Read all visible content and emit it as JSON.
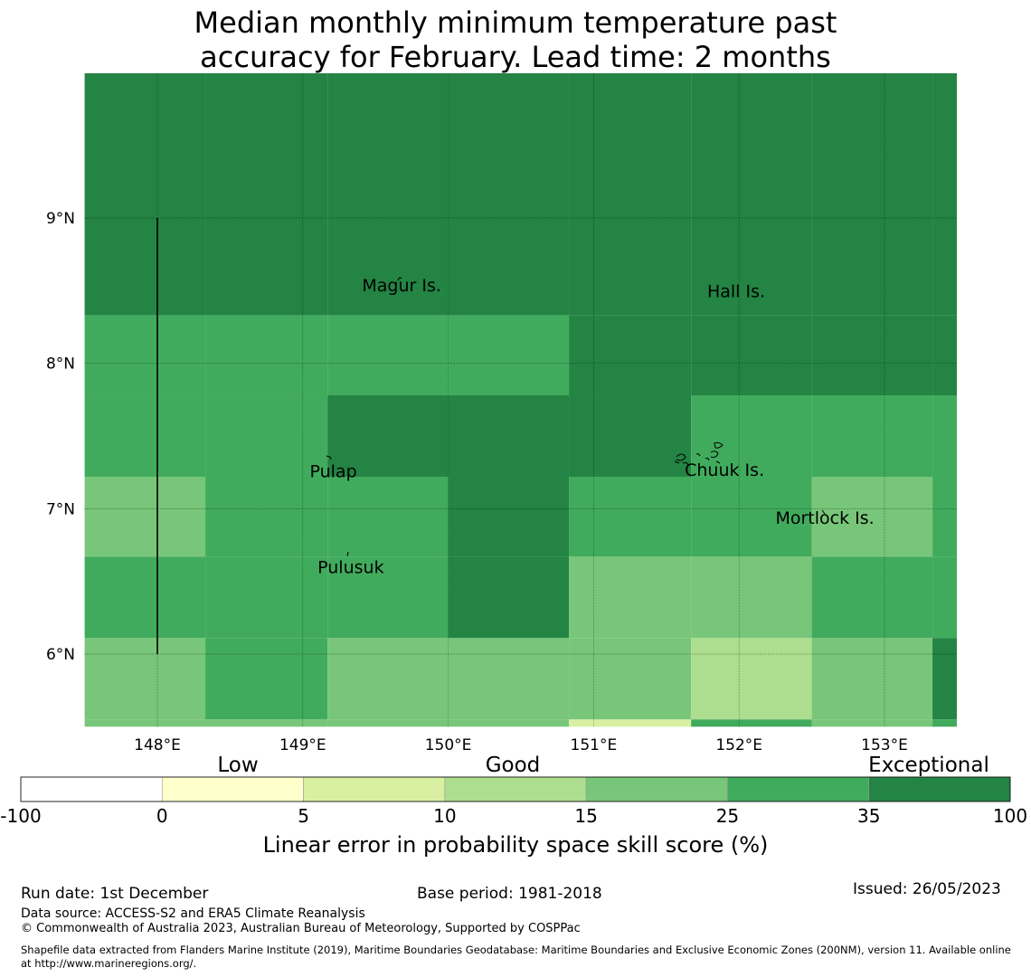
{
  "title": {
    "line1": "Median monthly minimum temperature past",
    "line2": "accuracy for February. Lead time: 2 months"
  },
  "map": {
    "lon_range": [
      147.5,
      153.5
    ],
    "lat_range": [
      5.5,
      10.0
    ],
    "lon_ticks": [
      {
        "value": 148,
        "label": "148°E"
      },
      {
        "value": 149,
        "label": "149°E"
      },
      {
        "value": 150,
        "label": "150°E"
      },
      {
        "value": 151,
        "label": "151°E"
      },
      {
        "value": 152,
        "label": "152°E"
      },
      {
        "value": 153,
        "label": "153°E"
      }
    ],
    "lat_ticks": [
      {
        "value": 9,
        "label": "9°N"
      },
      {
        "value": 8,
        "label": "8°N"
      },
      {
        "value": 7,
        "label": "7°N"
      },
      {
        "value": 6,
        "label": "6°N"
      }
    ],
    "boundary_line": {
      "lon": 148.0,
      "lat_from": 6.0,
      "lat_to": 9.0
    },
    "place_labels": [
      {
        "name": "Magur Is.",
        "lon": 149.68,
        "lat": 8.53
      },
      {
        "name": "Hall Is.",
        "lon": 151.98,
        "lat": 8.49
      },
      {
        "name": "Pulap",
        "lon": 149.21,
        "lat": 7.25
      },
      {
        "name": "Chuuk Is.",
        "lon": 151.9,
        "lat": 7.26
      },
      {
        "name": "Mortlock Is.",
        "lon": 152.59,
        "lat": 6.93
      },
      {
        "name": "Pulusuk",
        "lon": 149.33,
        "lat": 6.59
      }
    ],
    "skill_grid_description": "Cell score class (0-6) by row (top to bottom) and column (left to right)",
    "grid": {
      "cols_lon": [
        147.5,
        148.33,
        149.17,
        150.0,
        150.83,
        151.67,
        152.5,
        153.33,
        153.5
      ],
      "rows_lat": [
        10.0,
        8.33,
        7.78,
        7.22,
        6.67,
        6.11,
        5.55,
        5.5
      ],
      "classes": [
        [
          6,
          6,
          6,
          6,
          6,
          6,
          6,
          6
        ],
        [
          5,
          5,
          5,
          5,
          6,
          6,
          6,
          6
        ],
        [
          5,
          5,
          6,
          6,
          6,
          5,
          5,
          5
        ],
        [
          4,
          5,
          5,
          6,
          5,
          5,
          4,
          5
        ],
        [
          5,
          5,
          5,
          6,
          4,
          4,
          5,
          5
        ],
        [
          4,
          5,
          4,
          4,
          4,
          3,
          4,
          6
        ],
        [
          4,
          4,
          4,
          4,
          2,
          5,
          4,
          5
        ]
      ]
    }
  },
  "colorbar": {
    "category_labels": {
      "low": "Low",
      "good": "Good",
      "exceptional": "Exceptional"
    },
    "tick_labels": [
      "-100",
      "0",
      "5",
      "10",
      "15",
      "25",
      "35",
      "100"
    ],
    "colors": [
      "#ffffff",
      "#ffffcc",
      "#d9f0a3",
      "#addd8e",
      "#78c679",
      "#41ab5d",
      "#238443"
    ],
    "axis_label": "Linear error in probability space skill score (%)"
  },
  "footer": {
    "run_date": "Run date: 1st December",
    "base_period": "Base period: 1981-2018",
    "issued": "Issued: 26/05/2023",
    "data_source": "Data source: ACCESS-S2 and ERA5 Climate Reanalysis",
    "copyright": "© Commonwealth of Australia 2023, Australian Bureau of Meteorology, Supported by COSPPac",
    "shapefile": "Shapefile data extracted from Flanders Marine Institute (2019), Maritime Boundaries Geodatabase: Maritime Boundaries and Exclusive Economic Zones (200NM), version 11. Available online at http://www.marineregions.org/."
  }
}
